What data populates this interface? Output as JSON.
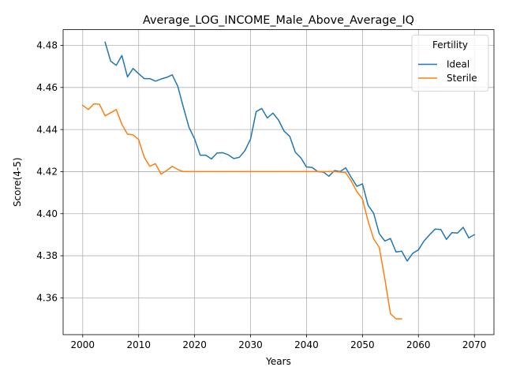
{
  "chart_data": {
    "type": "line",
    "title": "Average_LOG_INCOME_Male_Above_Average_IQ",
    "xlabel": "Years",
    "ylabel": "Score(4-5)",
    "xlim": [
      1996.5,
      2073.5
    ],
    "ylim": [
      4.3425,
      4.4875
    ],
    "xticks": [
      2000,
      2010,
      2020,
      2030,
      2040,
      2050,
      2060,
      2070
    ],
    "yticks": [
      4.36,
      4.38,
      4.4,
      4.42,
      4.44,
      4.46,
      4.48
    ],
    "ytick_labels": [
      "4.36",
      "4.38",
      "4.40",
      "4.42",
      "4.44",
      "4.46",
      "4.48"
    ],
    "grid": true,
    "legend": {
      "title": "Fertility",
      "placement": "top-right"
    },
    "series": [
      {
        "name": "Ideal",
        "color": "#1f77b4",
        "x": [
          2004,
          2005,
          2006,
          2007,
          2008,
          2009,
          2010,
          2011,
          2012,
          2013,
          2014,
          2015,
          2016,
          2017,
          2018,
          2019,
          2020,
          2021,
          2022,
          2023,
          2024,
          2025,
          2026,
          2027,
          2028,
          2029,
          2030,
          2031,
          2032,
          2033,
          2034,
          2035,
          2036,
          2037,
          2038,
          2039,
          2040,
          2041,
          2042,
          2043,
          2044,
          2045,
          2046,
          2047,
          2048,
          2049,
          2050,
          2051,
          2052,
          2053,
          2054,
          2055,
          2056,
          2057,
          2058,
          2059,
          2060,
          2061,
          2062,
          2063,
          2064,
          2065,
          2066,
          2067,
          2068,
          2069,
          2070
        ],
        "y": [
          4.4815,
          4.4725,
          4.4705,
          4.4752,
          4.465,
          4.469,
          4.4665,
          4.4642,
          4.4642,
          4.463,
          4.464,
          4.4648,
          4.466,
          4.4605,
          4.4505,
          4.441,
          4.4355,
          4.4278,
          4.4278,
          4.426,
          4.4288,
          4.429,
          4.428,
          4.4262,
          4.4268,
          4.43,
          4.4355,
          4.4485,
          4.45,
          4.4455,
          4.4478,
          4.4445,
          4.4392,
          4.4368,
          4.4292,
          4.4265,
          4.4222,
          4.422,
          4.42,
          4.4198,
          4.4178,
          4.4205,
          4.42,
          4.4218,
          4.4172,
          4.413,
          4.4142,
          4.404,
          4.4002,
          4.3905,
          4.387,
          4.3882,
          4.3818,
          4.3822,
          4.3775,
          4.3812,
          4.3828,
          4.387,
          4.39,
          4.3927,
          4.3925,
          4.3878,
          4.391,
          4.3908,
          4.3935,
          4.3885,
          4.39
        ]
      },
      {
        "name": "Sterile",
        "color": "#ff7f0e",
        "x": [
          2000,
          2001,
          2002,
          2003,
          2004,
          2005,
          2006,
          2007,
          2008,
          2009,
          2010,
          2011,
          2012,
          2013,
          2014,
          2015,
          2016,
          2017,
          2018,
          2019,
          2020,
          2021,
          2022,
          2023,
          2024,
          2025,
          2026,
          2027,
          2028,
          2029,
          2030,
          2031,
          2032,
          2033,
          2034,
          2035,
          2036,
          2037,
          2038,
          2039,
          2040,
          2041,
          2042,
          2043,
          2044,
          2045,
          2046,
          2047,
          2048,
          2049,
          2050,
          2051,
          2052,
          2053,
          2054,
          2055,
          2056,
          2057
        ],
        "y": [
          4.4515,
          4.4495,
          4.4522,
          4.452,
          4.4465,
          4.448,
          4.4495,
          4.4425,
          4.4378,
          4.4375,
          4.4352,
          4.4268,
          4.4225,
          4.4238,
          4.4188,
          4.4205,
          4.4225,
          4.421,
          4.42,
          4.42,
          4.42,
          4.42,
          4.42,
          4.42,
          4.42,
          4.42,
          4.42,
          4.42,
          4.42,
          4.42,
          4.42,
          4.42,
          4.42,
          4.42,
          4.42,
          4.42,
          4.42,
          4.42,
          4.42,
          4.42,
          4.42,
          4.42,
          4.42,
          4.42,
          4.42,
          4.42,
          4.4198,
          4.4195,
          4.4155,
          4.4105,
          4.407,
          4.3965,
          4.388,
          4.384,
          4.369,
          4.3525,
          4.35,
          4.35
        ]
      }
    ]
  }
}
